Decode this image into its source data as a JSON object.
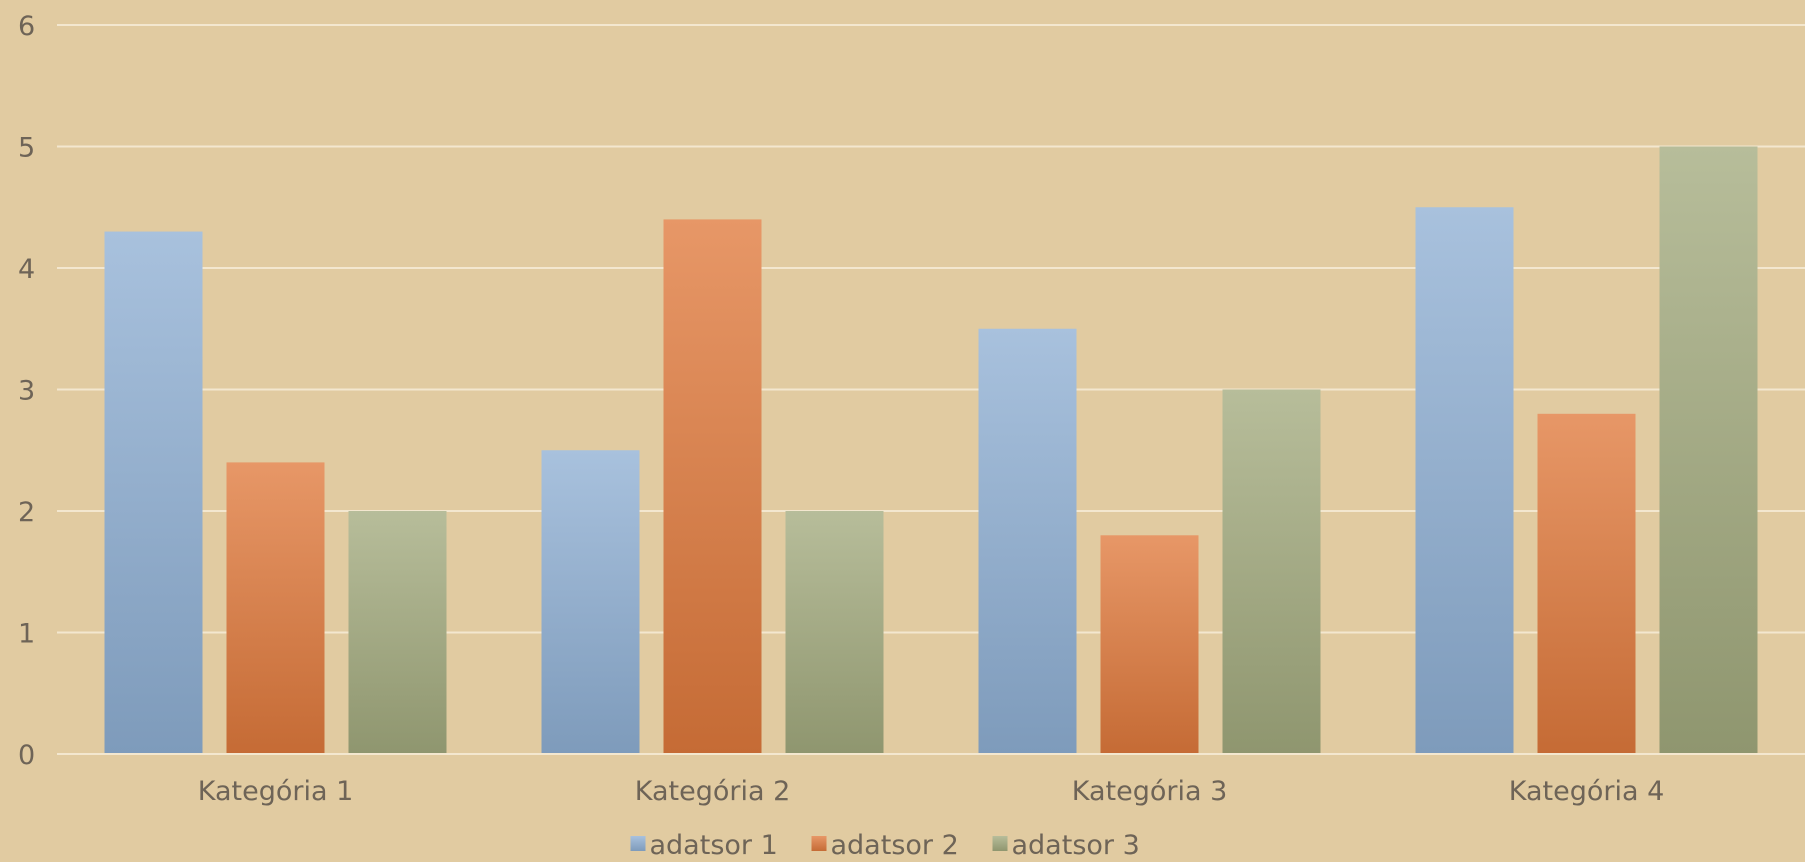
{
  "chart_data": {
    "type": "bar",
    "categories": [
      "Kategória 1",
      "Kategória 2",
      "Kategória 3",
      "Kategória 4"
    ],
    "series": [
      {
        "name": "adatsor 1",
        "values": [
          4.3,
          2.5,
          3.5,
          4.5
        ],
        "color": "#8fb0d4"
      },
      {
        "name": "adatsor 2",
        "values": [
          2.4,
          4.4,
          1.8,
          2.8
        ],
        "color": "#e07a3c"
      },
      {
        "name": "adatsor 3",
        "values": [
          2,
          2,
          3,
          5
        ],
        "color": "#a3aa7e"
      }
    ],
    "yticks": [
      "0",
      "1",
      "2",
      "3",
      "4",
      "5",
      "6"
    ],
    "ylim": [
      0,
      6
    ],
    "grid": true,
    "legend": "bottom",
    "colors": {
      "background": "#e1cba1",
      "grid": "#f3e7cf",
      "text": "#6e6457"
    }
  }
}
